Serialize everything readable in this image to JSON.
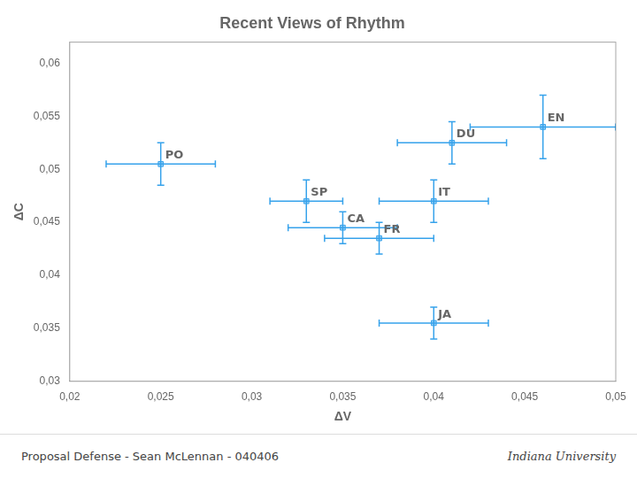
{
  "chart_data": {
    "type": "scatter",
    "title": "Recent Views of Rhythm",
    "xlabel": "ΔV",
    "ylabel": "ΔC",
    "xlim": [
      0.02,
      0.05
    ],
    "ylim": [
      0.03,
      0.062
    ],
    "xticks": [
      {
        "value": 0.02,
        "label": "0,02"
      },
      {
        "value": 0.025,
        "label": "0,025"
      },
      {
        "value": 0.03,
        "label": "0,03"
      },
      {
        "value": 0.035,
        "label": "0,035"
      },
      {
        "value": 0.04,
        "label": "0,04"
      },
      {
        "value": 0.045,
        "label": "0,045"
      },
      {
        "value": 0.05,
        "label": "0,05"
      }
    ],
    "yticks": [
      {
        "value": 0.03,
        "label": "0,03"
      },
      {
        "value": 0.035,
        "label": "0,035"
      },
      {
        "value": 0.04,
        "label": "0,04"
      },
      {
        "value": 0.045,
        "label": "0,045"
      },
      {
        "value": 0.05,
        "label": "0,05"
      },
      {
        "value": 0.055,
        "label": "0,055"
      },
      {
        "value": 0.06,
        "label": "0,06"
      }
    ],
    "point_labels": [
      "PO",
      "SP",
      "CA",
      "FR",
      "IT",
      "DU",
      "EN",
      "JA"
    ],
    "x": [
      0.025,
      0.033,
      0.035,
      0.037,
      0.04,
      0.041,
      0.046,
      0.04
    ],
    "values": [
      0.0505,
      0.047,
      0.0445,
      0.0435,
      0.047,
      0.0525,
      0.054,
      0.0355
    ],
    "x_err": [
      0.003,
      0.002,
      0.003,
      0.003,
      0.003,
      0.003,
      0.004,
      0.003
    ],
    "y_err": [
      0.002,
      0.002,
      0.0015,
      0.0015,
      0.002,
      0.002,
      0.003,
      0.0015
    ],
    "marker": "square",
    "grid": false,
    "annotations": [
      "Proposal Defense - Sean McLennan - 040406",
      "Indiana University"
    ]
  }
}
